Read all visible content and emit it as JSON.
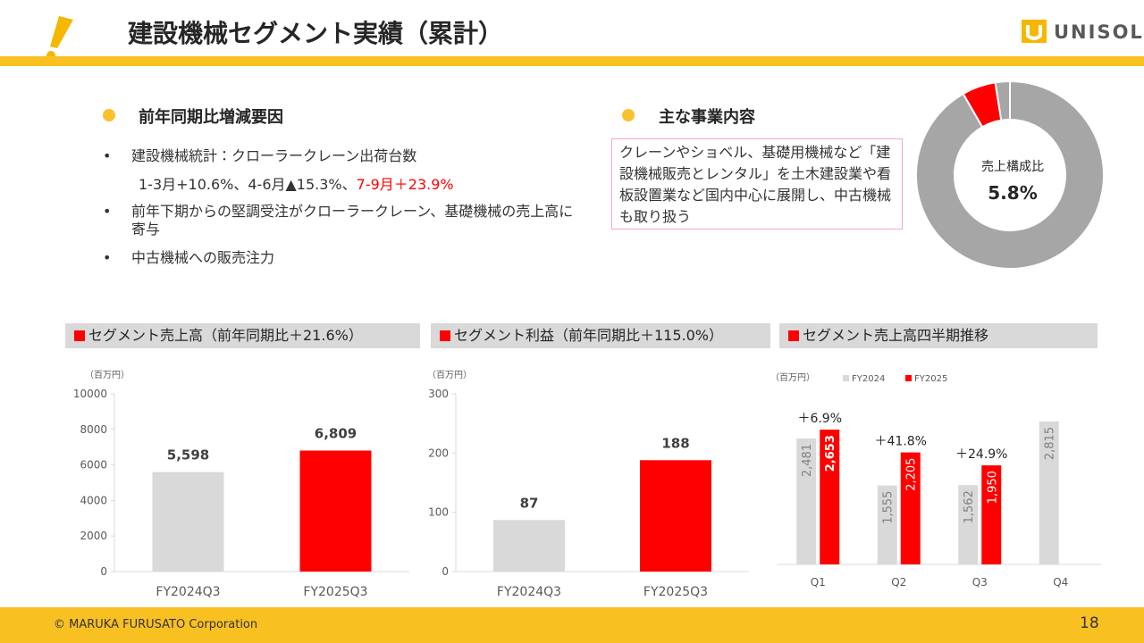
{
  "header": {
    "title": "建設機械セグメント実績（累計）",
    "logo": "UNISOL"
  },
  "left_section": {
    "heading": "前年同期比増減要因",
    "bullets": [
      "建設機械統計：クローラークレーン出荷台数",
      "前年下期からの堅調受注がクローラークレーン、基礎機械の売上高に寄与",
      "中古機械への販売注力"
    ],
    "bullet_detail": [
      "1-3月+10.6%、4-6月▲15.3%、",
      "7-9月＋23.9%"
    ]
  },
  "right_section": {
    "heading": "主な事業内容",
    "description": "クレーンやショベル、基礎用機械など「建設機械販売とレンタル」を土木建設業や看板設置業など国内中心に展開し、中古機械も取り扱う"
  },
  "footer": {
    "copyright": "© MARUKA FURUSATO Corporation",
    "page": "18"
  },
  "chart_data": [
    {
      "type": "bar",
      "title": "セグメント売上高（前年同期比＋21.6%）",
      "unit": "（百万円）",
      "categories": [
        "FY2024Q3",
        "FY2025Q3"
      ],
      "values": [
        5598,
        6809
      ],
      "value_labels": [
        "5,598",
        "6,809"
      ],
      "colors": [
        "#d9d9d9",
        "#ff0000"
      ],
      "ylim": [
        0,
        10000
      ],
      "yticks": [
        0,
        2000,
        4000,
        6000,
        8000,
        10000
      ]
    },
    {
      "type": "bar",
      "title": "セグメント利益（前年同期比＋115.0%）",
      "unit": "（百万円）",
      "categories": [
        "FY2024Q3",
        "FY2025Q3"
      ],
      "values": [
        87,
        188
      ],
      "colors": [
        "#d9d9d9",
        "#ff0000"
      ],
      "ylim": [
        0,
        300
      ],
      "yticks": [
        0,
        100,
        200,
        300
      ]
    },
    {
      "type": "bar",
      "title": "セグメント売上高四半期推移",
      "unit": "（百万円）",
      "categories": [
        "Q1",
        "Q2",
        "Q3",
        "Q4"
      ],
      "ylim": [
        0,
        3200
      ],
      "series": [
        {
          "name": "FY2024",
          "color": "#d9d9d9",
          "values": [
            2481,
            1555,
            1562,
            2815
          ],
          "value_labels": [
            "2,481",
            "1,555",
            "1,562",
            "2,815"
          ]
        },
        {
          "name": "FY2025",
          "color": "#ff0000",
          "values": [
            2653,
            2205,
            1950,
            null
          ],
          "value_labels": [
            "2,653",
            "2,205",
            "1,950",
            null
          ]
        }
      ],
      "annotations": [
        "＋6.9%",
        "＋41.8%",
        "＋24.9%"
      ]
    },
    {
      "type": "donut",
      "center_label": "売上構成比",
      "values": [
        91.7,
        5.8,
        2.5
      ],
      "value_labels": [
        null,
        "5.8%",
        null
      ],
      "colors": [
        "#a6a6a6",
        "#ff0000",
        "#a6a6a6"
      ]
    }
  ]
}
